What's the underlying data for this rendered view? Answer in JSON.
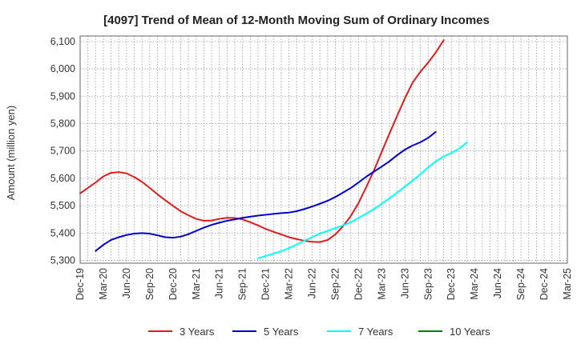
{
  "chart_data": {
    "type": "line",
    "title": "[4097]  Trend of Mean of 12-Month Moving Sum of Ordinary Incomes",
    "xlabel": "",
    "ylabel": "Amount (million yen)",
    "ylim": [
      5290,
      6120
    ],
    "yticks": [
      5300,
      5400,
      5500,
      5600,
      5700,
      5800,
      5900,
      6000,
      6100
    ],
    "ytick_labels": [
      "5,300",
      "5,400",
      "5,500",
      "5,600",
      "5,700",
      "5,800",
      "5,900",
      "6,000",
      "6,100"
    ],
    "categories": [
      "Dec-19",
      "Mar-20",
      "Jun-20",
      "Sep-20",
      "Dec-20",
      "Mar-21",
      "Jun-21",
      "Sep-21",
      "Dec-21",
      "Mar-22",
      "Jun-22",
      "Sep-22",
      "Dec-22",
      "Mar-23",
      "Jun-23",
      "Sep-23",
      "Dec-23",
      "Mar-24",
      "Jun-24",
      "Sep-24",
      "Dec-24",
      "Mar-25"
    ],
    "grid": true,
    "legend_position": "bottom",
    "series": [
      {
        "name": "3 Years",
        "color": "#e31a1c",
        "points": [
          [
            0,
            5545
          ],
          [
            0.33,
            5565
          ],
          [
            0.67,
            5585
          ],
          [
            1,
            5607
          ],
          [
            1.33,
            5620
          ],
          [
            1.67,
            5623
          ],
          [
            2,
            5618
          ],
          [
            2.33,
            5605
          ],
          [
            2.67,
            5587
          ],
          [
            3,
            5565
          ],
          [
            3.33,
            5542
          ],
          [
            3.67,
            5520
          ],
          [
            4,
            5500
          ],
          [
            4.33,
            5480
          ],
          [
            4.67,
            5465
          ],
          [
            5,
            5452
          ],
          [
            5.33,
            5445
          ],
          [
            5.67,
            5446
          ],
          [
            6,
            5452
          ],
          [
            6.33,
            5456
          ],
          [
            6.67,
            5455
          ],
          [
            7,
            5450
          ],
          [
            7.33,
            5440
          ],
          [
            7.67,
            5428
          ],
          [
            8,
            5415
          ],
          [
            8.33,
            5405
          ],
          [
            8.67,
            5395
          ],
          [
            9,
            5385
          ],
          [
            9.33,
            5378
          ],
          [
            9.67,
            5372
          ],
          [
            10,
            5368
          ],
          [
            10.33,
            5367
          ],
          [
            10.67,
            5375
          ],
          [
            11,
            5395
          ],
          [
            11.33,
            5425
          ],
          [
            11.67,
            5463
          ],
          [
            12,
            5510
          ],
          [
            12.33,
            5568
          ],
          [
            12.67,
            5630
          ],
          [
            13,
            5697
          ],
          [
            13.33,
            5763
          ],
          [
            13.67,
            5830
          ],
          [
            14,
            5893
          ],
          [
            14.33,
            5950
          ],
          [
            14.67,
            5990
          ],
          [
            15,
            6023
          ],
          [
            15.33,
            6060
          ],
          [
            15.67,
            6105
          ]
        ]
      },
      {
        "name": "5 Years",
        "color": "#0000cc",
        "points": [
          [
            0.67,
            5335
          ],
          [
            1,
            5357
          ],
          [
            1.33,
            5375
          ],
          [
            1.67,
            5385
          ],
          [
            2,
            5393
          ],
          [
            2.33,
            5398
          ],
          [
            2.67,
            5400
          ],
          [
            3,
            5398
          ],
          [
            3.33,
            5392
          ],
          [
            3.67,
            5385
          ],
          [
            4,
            5383
          ],
          [
            4.33,
            5387
          ],
          [
            4.67,
            5396
          ],
          [
            5,
            5408
          ],
          [
            5.33,
            5420
          ],
          [
            5.67,
            5430
          ],
          [
            6,
            5438
          ],
          [
            6.33,
            5445
          ],
          [
            6.67,
            5450
          ],
          [
            7,
            5456
          ],
          [
            7.33,
            5460
          ],
          [
            7.67,
            5464
          ],
          [
            8,
            5467
          ],
          [
            8.33,
            5470
          ],
          [
            8.67,
            5473
          ],
          [
            9,
            5475
          ],
          [
            9.33,
            5480
          ],
          [
            9.67,
            5488
          ],
          [
            10,
            5497
          ],
          [
            10.33,
            5507
          ],
          [
            10.67,
            5518
          ],
          [
            11,
            5532
          ],
          [
            11.33,
            5548
          ],
          [
            11.67,
            5565
          ],
          [
            12,
            5585
          ],
          [
            12.33,
            5606
          ],
          [
            12.67,
            5625
          ],
          [
            13,
            5643
          ],
          [
            13.33,
            5662
          ],
          [
            13.67,
            5685
          ],
          [
            14,
            5705
          ],
          [
            14.33,
            5720
          ],
          [
            14.67,
            5732
          ],
          [
            15,
            5748
          ],
          [
            15.33,
            5770
          ]
        ]
      },
      {
        "name": "7 Years",
        "color": "#00ffff",
        "points": [
          [
            7.67,
            5308
          ],
          [
            8,
            5316
          ],
          [
            8.33,
            5325
          ],
          [
            8.67,
            5334
          ],
          [
            9,
            5345
          ],
          [
            9.33,
            5358
          ],
          [
            9.67,
            5372
          ],
          [
            10,
            5385
          ],
          [
            10.33,
            5398
          ],
          [
            10.67,
            5408
          ],
          [
            11,
            5418
          ],
          [
            11.33,
            5428
          ],
          [
            11.67,
            5440
          ],
          [
            12,
            5455
          ],
          [
            12.33,
            5471
          ],
          [
            12.67,
            5488
          ],
          [
            13,
            5507
          ],
          [
            13.33,
            5527
          ],
          [
            13.67,
            5548
          ],
          [
            14,
            5570
          ],
          [
            14.33,
            5592
          ],
          [
            14.67,
            5615
          ],
          [
            15,
            5640
          ],
          [
            15.33,
            5662
          ],
          [
            15.67,
            5680
          ],
          [
            16,
            5693
          ],
          [
            16.33,
            5708
          ],
          [
            16.67,
            5731
          ]
        ]
      },
      {
        "name": "10 Years",
        "color": "#008000",
        "points": []
      }
    ]
  }
}
